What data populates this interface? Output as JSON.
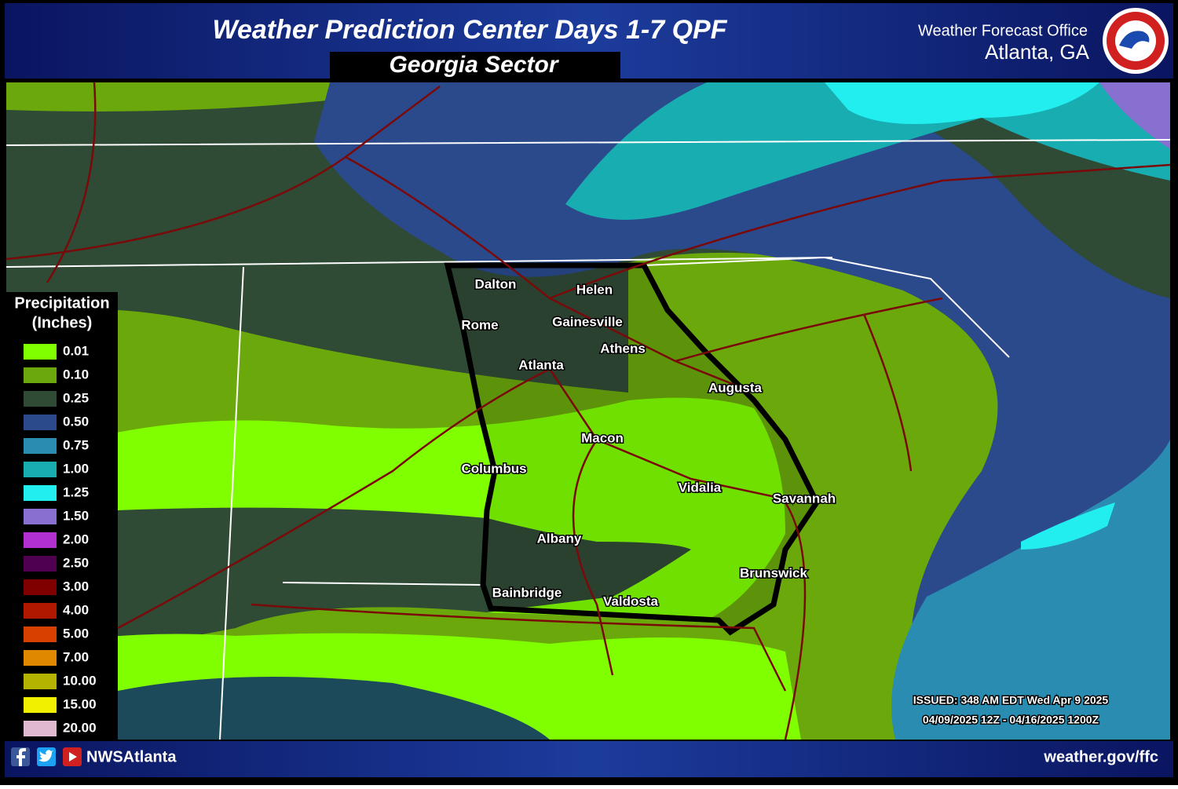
{
  "header": {
    "title": "Weather Prediction Center Days 1-7 QPF",
    "subtitle": "Georgia Sector",
    "office": "Weather Forecast Office",
    "location": "Atlanta, GA"
  },
  "legend": {
    "title": "Precipitation",
    "units": "(Inches)",
    "items": [
      {
        "label": "0.01",
        "color": "#80ff00"
      },
      {
        "label": "0.10",
        "color": "#6aa80c"
      },
      {
        "label": "0.25",
        "color": "#2f4a35"
      },
      {
        "label": "0.50",
        "color": "#2a4a8c"
      },
      {
        "label": "0.75",
        "color": "#2a8cb0"
      },
      {
        "label": "1.00",
        "color": "#18adb0"
      },
      {
        "label": "1.25",
        "color": "#22eef0"
      },
      {
        "label": "1.50",
        "color": "#8870d0"
      },
      {
        "label": "2.00",
        "color": "#b030d0"
      },
      {
        "label": "2.50",
        "color": "#500050"
      },
      {
        "label": "3.00",
        "color": "#800000"
      },
      {
        "label": "4.00",
        "color": "#b01800"
      },
      {
        "label": "5.00",
        "color": "#d84000"
      },
      {
        "label": "7.00",
        "color": "#e08800"
      },
      {
        "label": "10.00",
        "color": "#b4b400"
      },
      {
        "label": "15.00",
        "color": "#f0f000"
      },
      {
        "label": "20.00",
        "color": "#e0b8d0"
      }
    ]
  },
  "cities": [
    "Dalton",
    "Helen",
    "Rome",
    "Gainesville",
    "Athens",
    "Atlanta",
    "Augusta",
    "Macon",
    "Columbus",
    "Vidalia",
    "Savannah",
    "Albany",
    "Brunswick",
    "Bainbridge",
    "Valdosta"
  ],
  "issued": "ISSUED: 348 AM EDT Wed Apr 9 2025",
  "valid": "04/09/2025 12Z - 04/16/2025 1200Z",
  "footer": {
    "social": "NWSAtlanta",
    "website": "weather.gov/ffc"
  }
}
